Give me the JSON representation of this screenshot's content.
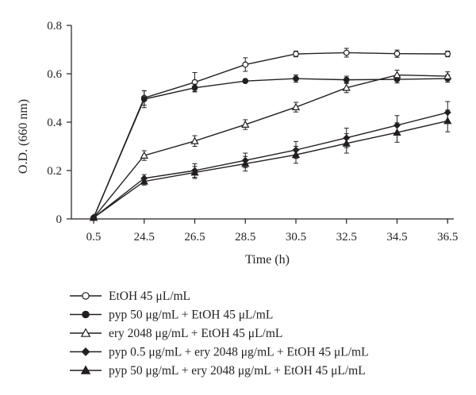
{
  "chart_data": {
    "type": "line",
    "title": "",
    "xlabel": "Time (h)",
    "ylabel": "O.D. (660 nm)",
    "categories": [
      "0.5",
      "24.5",
      "26.5",
      "28.5",
      "30.5",
      "32.5",
      "34.5",
      "36.5"
    ],
    "ylim": [
      0,
      0.8
    ],
    "yticks": [
      "0",
      "0.2",
      "0.4",
      "0.6",
      "0.8"
    ],
    "grid": false,
    "legend_position": "bottom",
    "line_color": "#231f20",
    "series": [
      {
        "name": "EtOH 45 μL/mL",
        "marker": "circle-open",
        "values": [
          0.005,
          0.5,
          0.565,
          0.638,
          0.682,
          0.687,
          0.683,
          0.682
        ],
        "errors": [
          0.004,
          0.03,
          0.04,
          0.028,
          0.012,
          0.018,
          0.015,
          0.012
        ]
      },
      {
        "name": "pyp 50 μg/mL + EtOH 45 μL/mL",
        "marker": "circle-filled",
        "values": [
          0.005,
          0.495,
          0.542,
          0.57,
          0.58,
          0.575,
          0.577,
          0.58
        ],
        "errors": [
          0.004,
          0.035,
          0.015,
          0.005,
          0.015,
          0.015,
          0.015,
          0.015
        ]
      },
      {
        "name": "ery 2048 μg/mL + EtOH 45 μL/mL",
        "marker": "triangle-open",
        "values": [
          0.005,
          0.262,
          0.322,
          0.39,
          0.462,
          0.542,
          0.595,
          0.59
        ],
        "errors": [
          0.004,
          0.02,
          0.022,
          0.02,
          0.02,
          0.02,
          0.02,
          0.018
        ]
      },
      {
        "name": "pyp 0.5 μg/mL + ery 2048 μg/mL + EtOH 45 μL/mL",
        "marker": "diamond-filled",
        "values": [
          0.005,
          0.168,
          0.2,
          0.242,
          0.285,
          0.335,
          0.387,
          0.44
        ],
        "errors": [
          0.004,
          0.015,
          0.028,
          0.03,
          0.035,
          0.04,
          0.04,
          0.045
        ]
      },
      {
        "name": "pyp 50 μg/mL + ery 2048 μg/mL + EtOH 45 μL/mL",
        "marker": "triangle-filled",
        "values": [
          0.005,
          0.155,
          0.192,
          0.228,
          0.265,
          0.312,
          0.357,
          0.405
        ],
        "errors": [
          0.004,
          0.015,
          0.025,
          0.03,
          0.035,
          0.04,
          0.04,
          0.045
        ]
      }
    ]
  }
}
